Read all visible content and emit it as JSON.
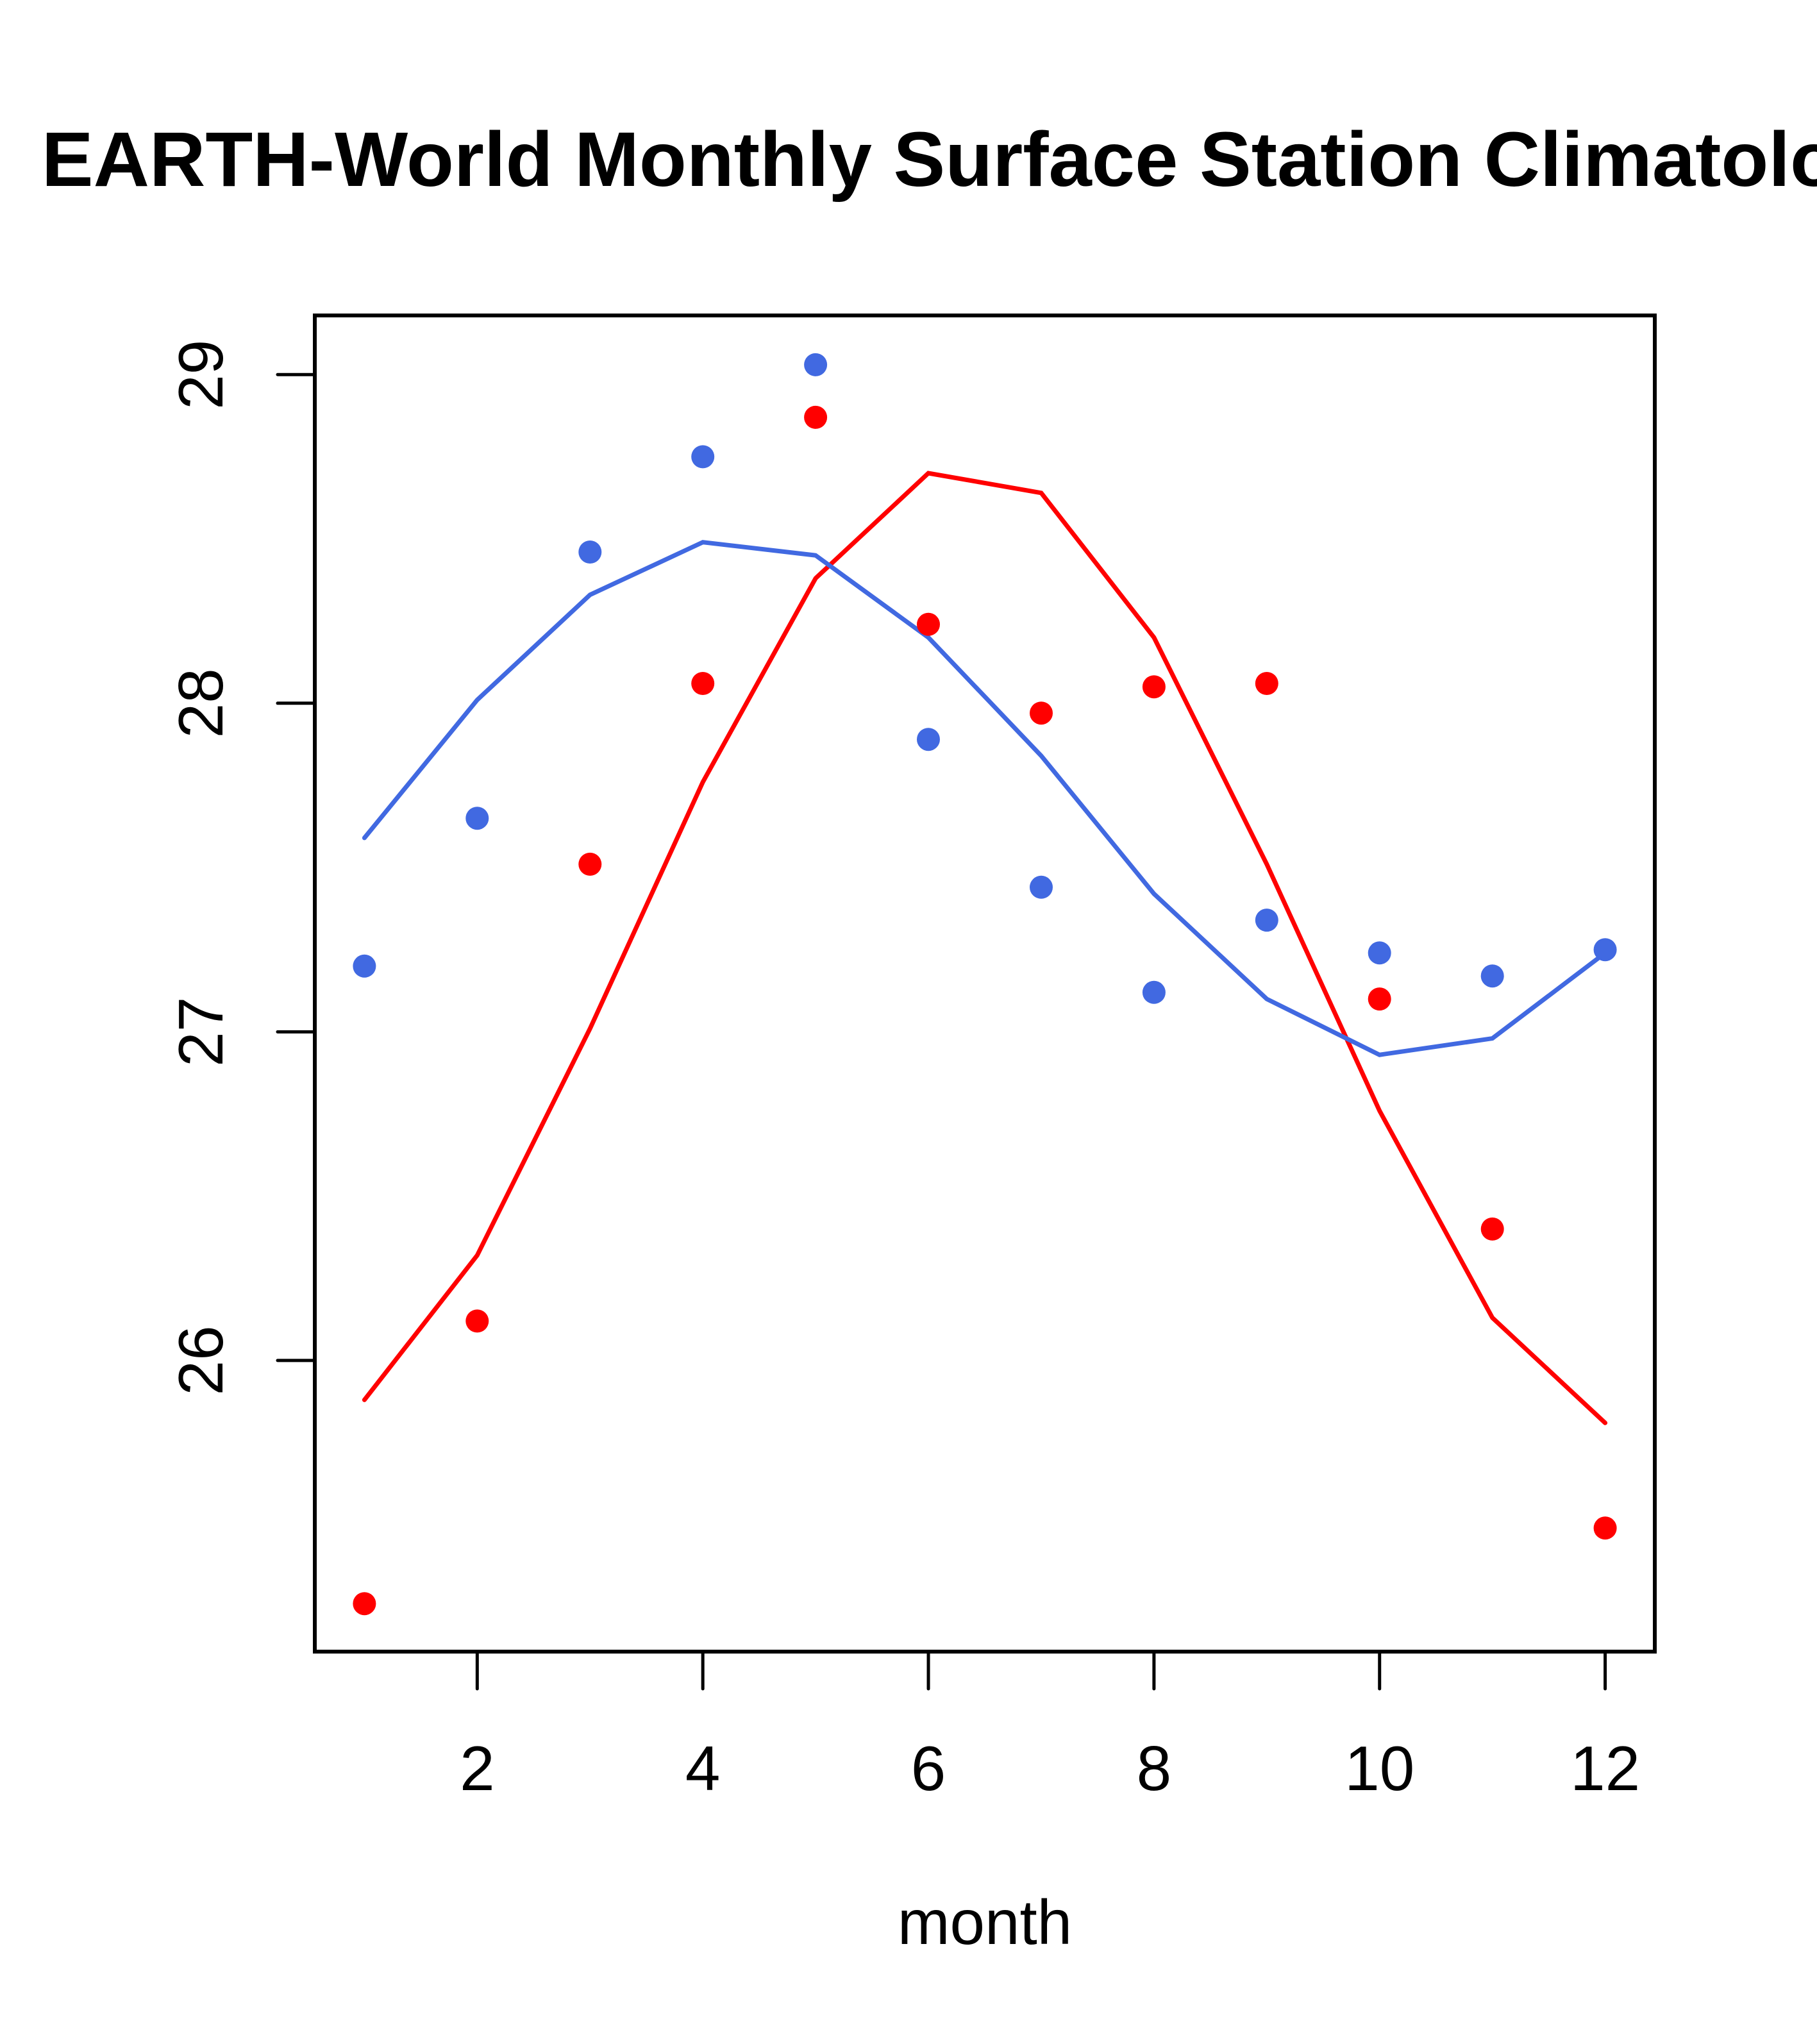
{
  "chart_data": {
    "type": "line",
    "title": "EARTH-World Monthly Surface Station Climatology",
    "xlabel": "month",
    "ylabel": "",
    "xlim": [
      0.56,
      12.44
    ],
    "ylim": [
      25.114,
      29.18
    ],
    "xticks": [
      2,
      4,
      6,
      8,
      10,
      12
    ],
    "xtick_labels": [
      "2",
      "4",
      "6",
      "8",
      "10",
      "12"
    ],
    "yticks": [
      26,
      27,
      28,
      29
    ],
    "ytick_labels": [
      "26",
      "27",
      "28",
      "29"
    ],
    "grid": false,
    "legend": null,
    "x": [
      1,
      2,
      3,
      4,
      5,
      6,
      7,
      8,
      9,
      10,
      11,
      12
    ],
    "series": [
      {
        "name": "red-line",
        "kind": "line",
        "color": "#FF0000",
        "values": [
          25.88,
          26.32,
          27.01,
          27.76,
          28.38,
          28.7,
          28.64,
          28.2,
          27.51,
          26.76,
          26.13,
          25.81
        ]
      },
      {
        "name": "red-points",
        "kind": "scatter",
        "color": "#FF0000",
        "values": [
          25.26,
          26.12,
          27.51,
          28.06,
          28.87,
          28.24,
          27.97,
          28.05,
          28.06,
          27.1,
          26.4,
          25.49
        ]
      },
      {
        "name": "blue-line",
        "kind": "line",
        "color": "#4169E1",
        "values": [
          27.59,
          28.01,
          28.33,
          28.49,
          28.45,
          28.2,
          27.84,
          27.42,
          27.1,
          26.93,
          26.98,
          27.24
        ]
      },
      {
        "name": "blue-points",
        "kind": "scatter",
        "color": "#4169E1",
        "values": [
          27.2,
          27.65,
          28.46,
          28.75,
          29.03,
          27.89,
          27.44,
          27.12,
          27.34,
          27.24,
          27.17,
          27.25
        ]
      }
    ]
  }
}
